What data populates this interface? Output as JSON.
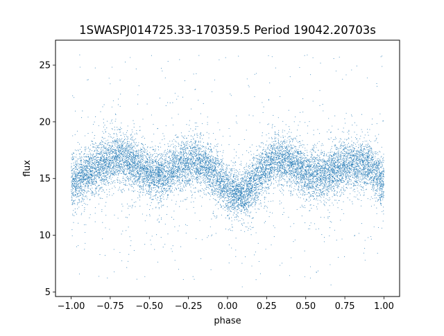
{
  "chart_data": {
    "type": "scatter",
    "title": "1SWASPJ014725.33-170359.5 Period 19042.20703s",
    "xlabel": "phase",
    "ylabel": "flux",
    "xlim": [
      -1.1,
      1.1
    ],
    "ylim": [
      4.6,
      27.2
    ],
    "x_ticks": [
      -1.0,
      -0.75,
      -0.5,
      -0.25,
      0.0,
      0.25,
      0.5,
      0.75,
      1.0
    ],
    "x_tick_labels": [
      "−1.00",
      "−0.75",
      "−0.50",
      "−0.25",
      "0.00",
      "0.25",
      "0.50",
      "0.75",
      "1.00"
    ],
    "y_ticks": [
      5,
      10,
      15,
      20,
      25
    ],
    "y_tick_labels": [
      "5",
      "10",
      "15",
      "20",
      "25"
    ],
    "grid": false,
    "legend": "none",
    "series": [
      {
        "color": "#1f77b4",
        "marker": "point",
        "x_range": [
          -1.0,
          1.0
        ],
        "trend_x": [
          -1.0,
          -0.9,
          -0.8,
          -0.7,
          -0.6,
          -0.5,
          -0.4,
          -0.3,
          -0.2,
          -0.1,
          0.0,
          0.1,
          0.2,
          0.3,
          0.4,
          0.5,
          0.6,
          0.7,
          0.8,
          0.9,
          1.0
        ],
        "trend_y": [
          14.6,
          15.4,
          16.3,
          16.9,
          16.4,
          15.3,
          15.2,
          16.2,
          16.6,
          15.7,
          14.0,
          13.5,
          15.2,
          16.6,
          16.5,
          15.4,
          15.2,
          15.9,
          16.4,
          16.2,
          14.6
        ]
      }
    ]
  }
}
